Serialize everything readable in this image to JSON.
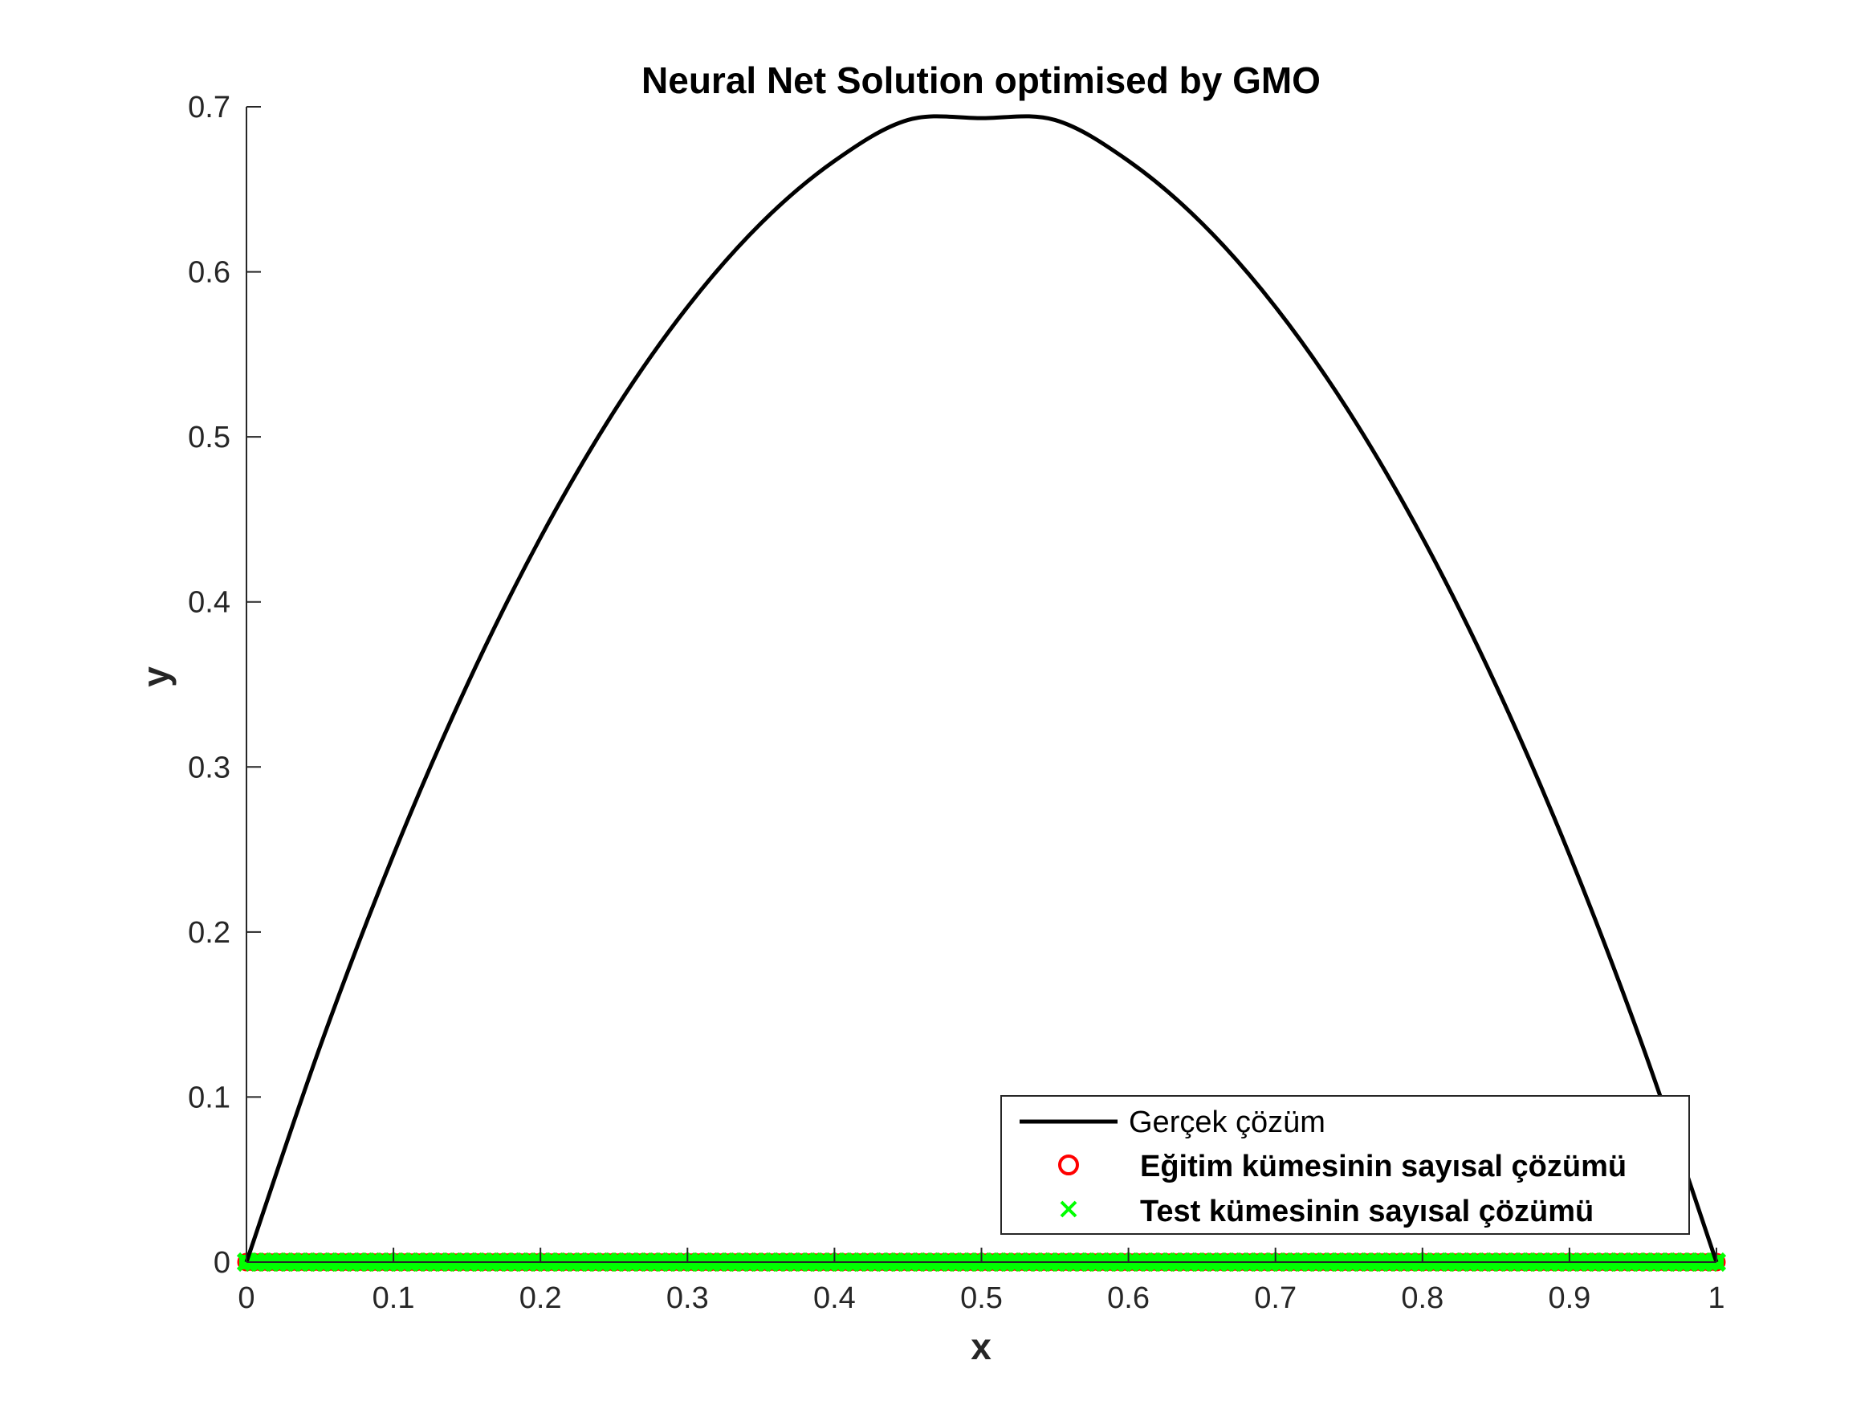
{
  "colors": {
    "line": "#000000",
    "train_marker": "#ff0000",
    "test_marker": "#00ff00",
    "axis": "#262626",
    "background": "#ffffff"
  },
  "chart_data": {
    "type": "line",
    "title": "Neural Net Solution optimised by GMO",
    "xlabel": "x",
    "ylabel": "y",
    "xlim": [
      0,
      1
    ],
    "ylim": [
      0,
      0.7
    ],
    "xticks": [
      0,
      0.1,
      0.2,
      0.3,
      0.4,
      0.5,
      0.6,
      0.7,
      0.8,
      0.9,
      1
    ],
    "xtick_labels": [
      "0",
      "0.1",
      "0.2",
      "0.3",
      "0.4",
      "0.5",
      "0.6",
      "0.7",
      "0.8",
      "0.9",
      "1"
    ],
    "yticks": [
      0,
      0.1,
      0.2,
      0.3,
      0.4,
      0.5,
      0.6,
      0.7
    ],
    "ytick_labels": [
      "0",
      "0.1",
      "0.2",
      "0.3",
      "0.4",
      "0.5",
      "0.6",
      "0.7"
    ],
    "grid": false,
    "legend_position": "bottom-right",
    "series": [
      {
        "name": "Gerçek çözüm",
        "style": "line",
        "color": "#000000",
        "x": [
          0,
          0.05,
          0.1,
          0.15,
          0.2,
          0.25,
          0.3,
          0.35,
          0.4,
          0.45,
          0.5,
          0.55,
          0.6,
          0.65,
          0.7,
          0.75,
          0.8,
          0.85,
          0.9,
          0.95,
          1
        ],
        "y": [
          0,
          0.1304,
          0.2468,
          0.3495,
          0.4389,
          0.5153,
          0.5787,
          0.6294,
          0.6672,
          0.692,
          0.6931,
          0.692,
          0.6672,
          0.6294,
          0.5787,
          0.5153,
          0.4389,
          0.3495,
          0.2468,
          0.1304,
          0
        ]
      },
      {
        "name": "Eğitim kümesinin sayısal çözümü",
        "style": "circle-markers",
        "color": "#ff0000",
        "x_range": [
          0,
          1
        ],
        "y_constant": 0
      },
      {
        "name": "Test kümesinin sayısal çözümü",
        "style": "x-markers",
        "color": "#00ff00",
        "x_range": [
          0,
          1
        ],
        "y_constant": 0
      }
    ]
  }
}
